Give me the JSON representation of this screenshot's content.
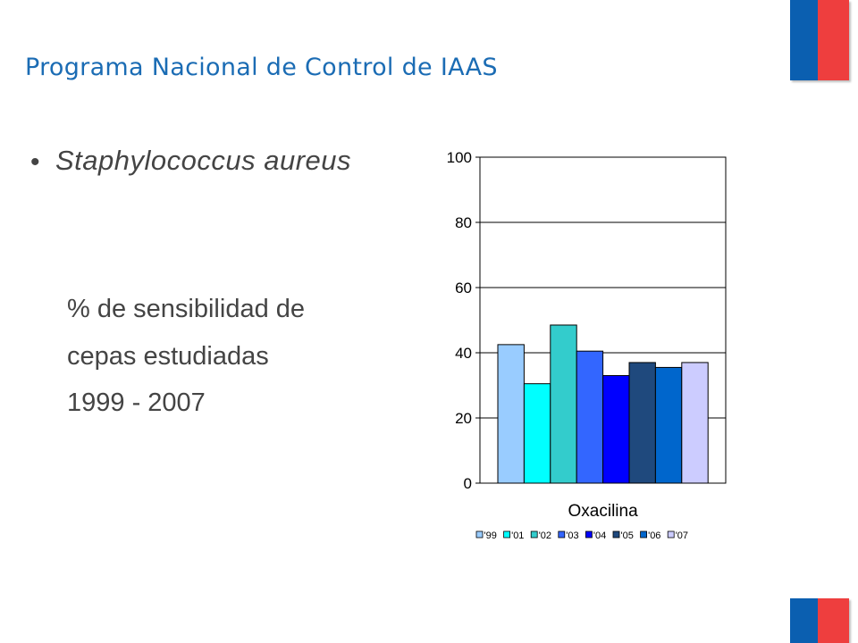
{
  "slide": {
    "title": "Programa Nacional de Control de IAAS",
    "bullet_symbol": "•",
    "bullet_text": "Staphylococcus aureus",
    "description_lines": [
      "% de sensibilidad de",
      "cepas estudiadas",
      "1999 - 2007"
    ]
  },
  "colors": {
    "title": "#1b6cb4",
    "flag_blue": "#0b5fb0",
    "flag_red": "#ee3e3e"
  },
  "chart_data": {
    "type": "bar",
    "categories": [
      "Oxacilina"
    ],
    "series": [
      {
        "name": "'99",
        "values": [
          42.5
        ],
        "color": "#99ccff"
      },
      {
        "name": "'01",
        "values": [
          30.5
        ],
        "color": "#00ffff"
      },
      {
        "name": "'02",
        "values": [
          48.5
        ],
        "color": "#33cccc"
      },
      {
        "name": "'03",
        "values": [
          40.5
        ],
        "color": "#3366ff"
      },
      {
        "name": "'04",
        "values": [
          33
        ],
        "color": "#0000ff"
      },
      {
        "name": "'05",
        "values": [
          37
        ],
        "color": "#1f497d"
      },
      {
        "name": "'06",
        "values": [
          35.5
        ],
        "color": "#0066cc"
      },
      {
        "name": "'07",
        "values": [
          37
        ],
        "color": "#ccccff"
      }
    ],
    "ylim": [
      0,
      100
    ],
    "yticks": [
      0,
      20,
      40,
      60,
      80,
      100
    ],
    "grid": true,
    "legend": "bottom"
  }
}
